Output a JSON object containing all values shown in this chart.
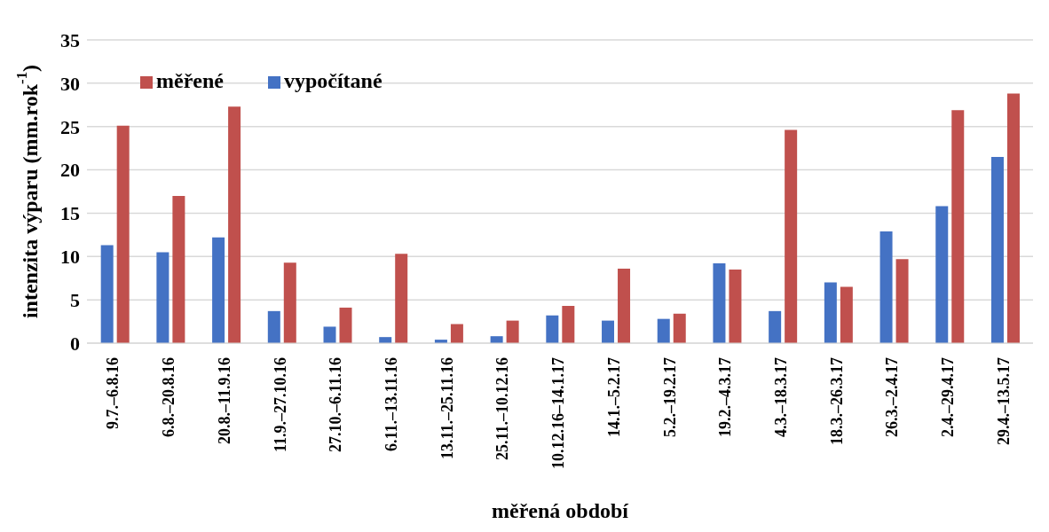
{
  "chart_data": {
    "type": "bar",
    "xlabel": "měřená období",
    "ylabel": "intenzita výparu (mm.rok$^{-1}$)",
    "categories": [
      "9.7.–6.8.16",
      "6.8.–20.8.16",
      "20.8.–11.9.16",
      "11.9.–27.10.16",
      "27.10.–6.11.16",
      "6.11.–13.11.16",
      "13.11.–25.11.16",
      "25.11.–10.12.16",
      "10.12.16–14.1.17",
      "14.1.–5.2.17",
      "5.2.–19.2.17",
      "19.2.–4.3.17",
      "4.3.–18.3.17",
      "18.3.–26.3.17",
      "26.3.–2.4.17",
      "2.4.–29.4.17",
      "29.4.–13.5.17"
    ],
    "series": [
      {
        "name": "vypočítané",
        "color": "#4472c4",
        "values": [
          11.3,
          10.5,
          12.2,
          3.7,
          1.9,
          0.7,
          0.4,
          0.8,
          3.2,
          2.6,
          2.8,
          9.2,
          3.7,
          7.0,
          12.9,
          15.8,
          21.5
        ]
      },
      {
        "name": "měřené",
        "color": "#c0504d",
        "values": [
          25.1,
          17.0,
          27.3,
          9.3,
          4.1,
          10.3,
          2.2,
          2.6,
          4.3,
          8.6,
          3.4,
          8.5,
          24.6,
          6.5,
          9.7,
          26.9,
          28.8
        ]
      }
    ],
    "ylim": [
      0,
      35
    ],
    "yticks": [
      0,
      5,
      10,
      15,
      20,
      25,
      30,
      35
    ],
    "grid": "y",
    "legend": "top left"
  }
}
